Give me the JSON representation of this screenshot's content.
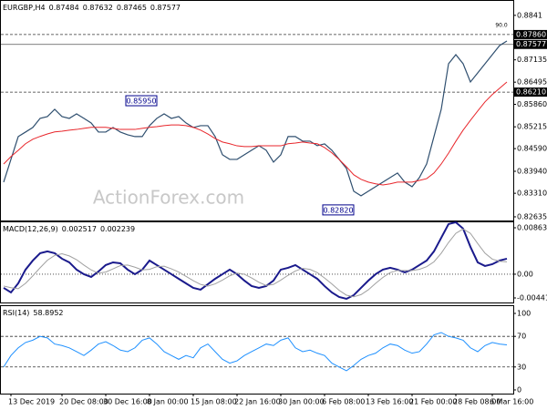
{
  "chart_data": [
    {
      "type": "line",
      "symbol": "EURGBP,H4",
      "ohlc": [
        0.87484,
        0.87632,
        0.87465,
        0.87577
      ],
      "watermark": "ActionForex.com",
      "corner_note": "90.0",
      "ylim": [
        0.8253,
        0.8885
      ],
      "yticks": [
        0.8841,
        0.87135,
        0.86495,
        {
          "value": 0.8586,
          "label": "0.85860"
        },
        0.85215,
        {
          "value": 0.8459,
          "label": "0.84590"
        },
        {
          "value": 0.8394,
          "label": "0.83940"
        },
        {
          "value": 0.8331,
          "label": "0.83310"
        },
        0.82635
      ],
      "levels": [
        {
          "value": 0.8786,
          "label": "0.87860",
          "style": "dashed"
        },
        {
          "value": 0.87577,
          "label": "0.87577",
          "style": "solid"
        },
        {
          "value": 0.8621,
          "label": "0.86210",
          "style": "dashed"
        }
      ],
      "annotations": [
        {
          "x": 21,
          "value": 0.8595,
          "label": "0.85950"
        },
        {
          "x": 48,
          "value": 0.8282,
          "label": "0.82820"
        }
      ],
      "series": [
        {
          "color": "#2f4f6f",
          "width": 1.2,
          "values": [
            0.8363,
            0.84282,
            0.84935,
            0.85065,
            0.85196,
            0.85457,
            0.85509,
            0.85718,
            0.85509,
            0.85457,
            0.85587,
            0.85457,
            0.85326,
            0.85065,
            0.85065,
            0.85196,
            0.85065,
            0.84987,
            0.84935,
            0.84935,
            0.85248,
            0.85457,
            0.85587,
            0.85457,
            0.85509,
            0.85326,
            0.85196,
            0.85248,
            0.85248,
            0.84935,
            0.84413,
            0.84282,
            0.84282,
            0.84413,
            0.84543,
            0.84674,
            0.84543,
            0.84204,
            0.84413,
            0.84935,
            0.84935,
            0.84804,
            0.84804,
            0.84674,
            0.84726,
            0.84543,
            0.84282,
            0.84021,
            0.83369,
            0.83238,
            0.83369,
            0.83499,
            0.8363,
            0.8376,
            0.83891,
            0.8363,
            0.83499,
            0.8376,
            0.84152,
            0.84935,
            0.85718,
            0.87023,
            0.87284,
            0.87023,
            0.86501,
            0.86762,
            0.87023,
            0.87284,
            0.87545,
            0.87675
          ]
        },
        {
          "color": "#e8262b",
          "width": 1,
          "values": [
            0.8415,
            0.8436,
            0.8454,
            0.8473,
            0.8486,
            0.8494,
            0.8501,
            0.8507,
            0.8509,
            0.8512,
            0.8514,
            0.8517,
            0.852,
            0.852,
            0.852,
            0.8517,
            0.8514,
            0.8514,
            0.8514,
            0.8517,
            0.852,
            0.8522,
            0.8525,
            0.8527,
            0.8527,
            0.8525,
            0.852,
            0.8512,
            0.8501,
            0.8488,
            0.8478,
            0.8473,
            0.8467,
            0.8465,
            0.8465,
            0.8467,
            0.8467,
            0.8467,
            0.8467,
            0.8473,
            0.8475,
            0.8478,
            0.8475,
            0.8473,
            0.8462,
            0.8447,
            0.8428,
            0.8407,
            0.8384,
            0.8371,
            0.8363,
            0.8358,
            0.8355,
            0.8358,
            0.8363,
            0.8363,
            0.8363,
            0.8368,
            0.8373,
            0.8389,
            0.8415,
            0.8446,
            0.848,
            0.8512,
            0.854,
            0.8567,
            0.8593,
            0.8614,
            0.8632,
            0.865
          ]
        }
      ]
    },
    {
      "type": "line",
      "name": "MACD(12,26,9)",
      "readings": [
        0.002517,
        0.002239
      ],
      "ylim": [
        -0.00526,
        0.00982
      ],
      "yticks": [
        0.008635,
        {
          "value": 0,
          "label": "0.00"
        },
        -0.004415
      ],
      "levels": [
        {
          "value": 0,
          "style": "dotted"
        }
      ],
      "series": [
        {
          "color": "#1a1a8c",
          "width": 2,
          "values": [
            -0.00254,
            -0.00339,
            -0.0017,
            0.00085,
            0.00254,
            0.0039,
            0.00424,
            0.0039,
            0.00288,
            0.0022,
            0.00085,
            0,
            -0.00051,
            0.00051,
            0.0017,
            0.0022,
            0.00203,
            0.00085,
            0,
            0.00085,
            0.00254,
            0.0017,
            0.00085,
            0,
            -0.00085,
            -0.0017,
            -0.00254,
            -0.00288,
            -0.00186,
            -0.00085,
            0,
            0.00085,
            0,
            -0.00119,
            -0.0022,
            -0.00254,
            -0.0022,
            -0.00119,
            0.00085,
            0.00119,
            0.0017,
            0.00085,
            0,
            -0.00085,
            -0.0022,
            -0.00339,
            -0.00424,
            -0.00458,
            -0.0039,
            -0.00254,
            -0.00119,
            0,
            0.00085,
            0.00119,
            0.00085,
            0.00034,
            0.00085,
            0.0017,
            0.00254,
            0.00424,
            0.00678,
            0.00932,
            0.00966,
            0.00848,
            0.00509,
            0.0022,
            0.00153,
            0.00186,
            0.00254,
            0.00288
          ]
        },
        {
          "color": "#a0a0a0",
          "width": 1,
          "values": [
            -0.0022,
            -0.0025,
            -0.0027,
            -0.0017,
            -0.0003,
            0.0012,
            0.0026,
            0.0035,
            0.0038,
            0.0034,
            0.0027,
            0.0017,
            0.0008,
            0.0002,
            0.0004,
            0.001,
            0.0016,
            0.0017,
            0.0013,
            0.0008,
            0.0009,
            0.0014,
            0.0015,
            0.001,
            0.0004,
            -0.0004,
            -0.0012,
            -0.0019,
            -0.0022,
            -0.0018,
            -0.0011,
            -0.0003,
            0.0002,
            0,
            -0.0007,
            -0.0015,
            -0.0021,
            -0.0019,
            -0.0011,
            -0.0002,
            0.0006,
            0.0011,
            0.0009,
            0.0003,
            -0.0007,
            -0.0018,
            -0.003,
            -0.0039,
            -0.0042,
            -0.0038,
            -0.0029,
            -0.0017,
            -0.0006,
            0.0003,
            0.0007,
            0.0007,
            0.0007,
            0.0009,
            0.0014,
            0.0023,
            0.0039,
            0.0059,
            0.0076,
            0.0084,
            0.0076,
            0.0057,
            0.0039,
            0.0028,
            0.0024,
            0.0023
          ]
        }
      ]
    },
    {
      "type": "line",
      "name": "RSI(14)",
      "readings": [
        58.8952
      ],
      "ylim": [
        -4.8,
        110.7
      ],
      "yticks": [
        100,
        70,
        30,
        0
      ],
      "levels": [
        {
          "value": 70,
          "style": "dashed"
        },
        {
          "value": 30,
          "style": "dashed"
        }
      ],
      "xticks": [
        {
          "value": 1,
          "label": "13 Dec 2019"
        },
        {
          "value": 8,
          "label": "20 Dec 08:00"
        },
        {
          "value": 14,
          "label": "30 Dec 16:00"
        },
        {
          "value": 20,
          "label": "8 Jan 00:00"
        },
        {
          "value": 26,
          "label": "15 Jan 08:00"
        },
        {
          "value": 32,
          "label": "22 Jan 16:00"
        },
        {
          "value": 38,
          "label": "30 Jan 00:00"
        },
        {
          "value": 44,
          "label": "6 Feb 08:00"
        },
        {
          "value": 50,
          "label": "13 Feb 16:00"
        },
        {
          "value": 56,
          "label": "21 Feb 00:00"
        },
        {
          "value": 62,
          "label": "28 Feb 08:00"
        },
        {
          "value": 67,
          "label": "6 Mar 16:00"
        }
      ],
      "series": [
        {
          "color": "#1e90ff",
          "width": 1,
          "values": [
            30,
            45,
            55,
            62,
            65,
            70,
            68,
            60,
            58,
            55,
            50,
            45,
            52,
            60,
            63,
            58,
            52,
            50,
            55,
            65,
            68,
            60,
            50,
            45,
            40,
            45,
            42,
            55,
            60,
            50,
            40,
            35,
            38,
            45,
            50,
            55,
            60,
            58,
            65,
            68,
            55,
            50,
            52,
            48,
            45,
            35,
            30,
            25,
            32,
            40,
            45,
            48,
            55,
            60,
            58,
            52,
            48,
            50,
            60,
            72,
            75,
            70,
            68,
            65,
            55,
            50,
            58,
            62,
            60,
            58.9
          ]
        }
      ]
    }
  ]
}
